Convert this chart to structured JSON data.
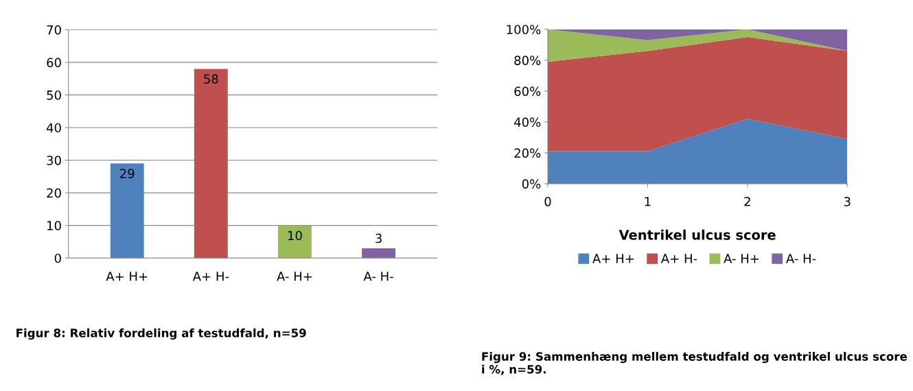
{
  "chart_data": [
    {
      "type": "bar",
      "categories": [
        "A+ H+",
        "A+ H-",
        "A- H+",
        "A- H-"
      ],
      "values": [
        29,
        58,
        10,
        3
      ],
      "colors": [
        "#4f81bd",
        "#c0504d",
        "#9bbb59",
        "#8064a2"
      ],
      "ylim": [
        0,
        70
      ],
      "yticks": [
        0,
        10,
        20,
        30,
        40,
        50,
        60,
        70
      ],
      "grid": "y",
      "data_labels": true,
      "legend": false,
      "annotations": [
        "Figur 8: Relativ fordeling af testudfald, n=59"
      ]
    },
    {
      "type": "area",
      "stacked": true,
      "x": [
        0,
        1,
        2,
        3
      ],
      "xlim": [
        0,
        3
      ],
      "xticks": [
        0,
        1,
        2,
        3
      ],
      "ylim": [
        0,
        100
      ],
      "yticks": [
        {
          "value": 0,
          "label": "0%"
        },
        {
          "value": 20,
          "label": "20%"
        },
        {
          "value": 40,
          "label": "40%"
        },
        {
          "value": 60,
          "label": "60%"
        },
        {
          "value": 80,
          "label": "80%"
        },
        {
          "value": 100,
          "label": "100%"
        }
      ],
      "xlabel": "Ventrikel ulcus score",
      "grid": false,
      "legend": "bottom",
      "series": [
        {
          "name": "A+ H+",
          "color": "#4f81bd",
          "values": [
            21,
            21,
            42,
            29
          ]
        },
        {
          "name": "A+ H-",
          "color": "#c0504d",
          "values": [
            58,
            65,
            53,
            57
          ]
        },
        {
          "name": "A- H+",
          "color": "#9bbb59",
          "values": [
            21,
            7,
            5,
            0
          ]
        },
        {
          "name": "A- H-",
          "color": "#8064a2",
          "values": [
            0,
            7,
            0,
            14
          ]
        }
      ],
      "annotations": [
        "Figur 9: Sammenhæng mellem testudfald og ventrikel ulcus score i %, n=59."
      ]
    }
  ]
}
